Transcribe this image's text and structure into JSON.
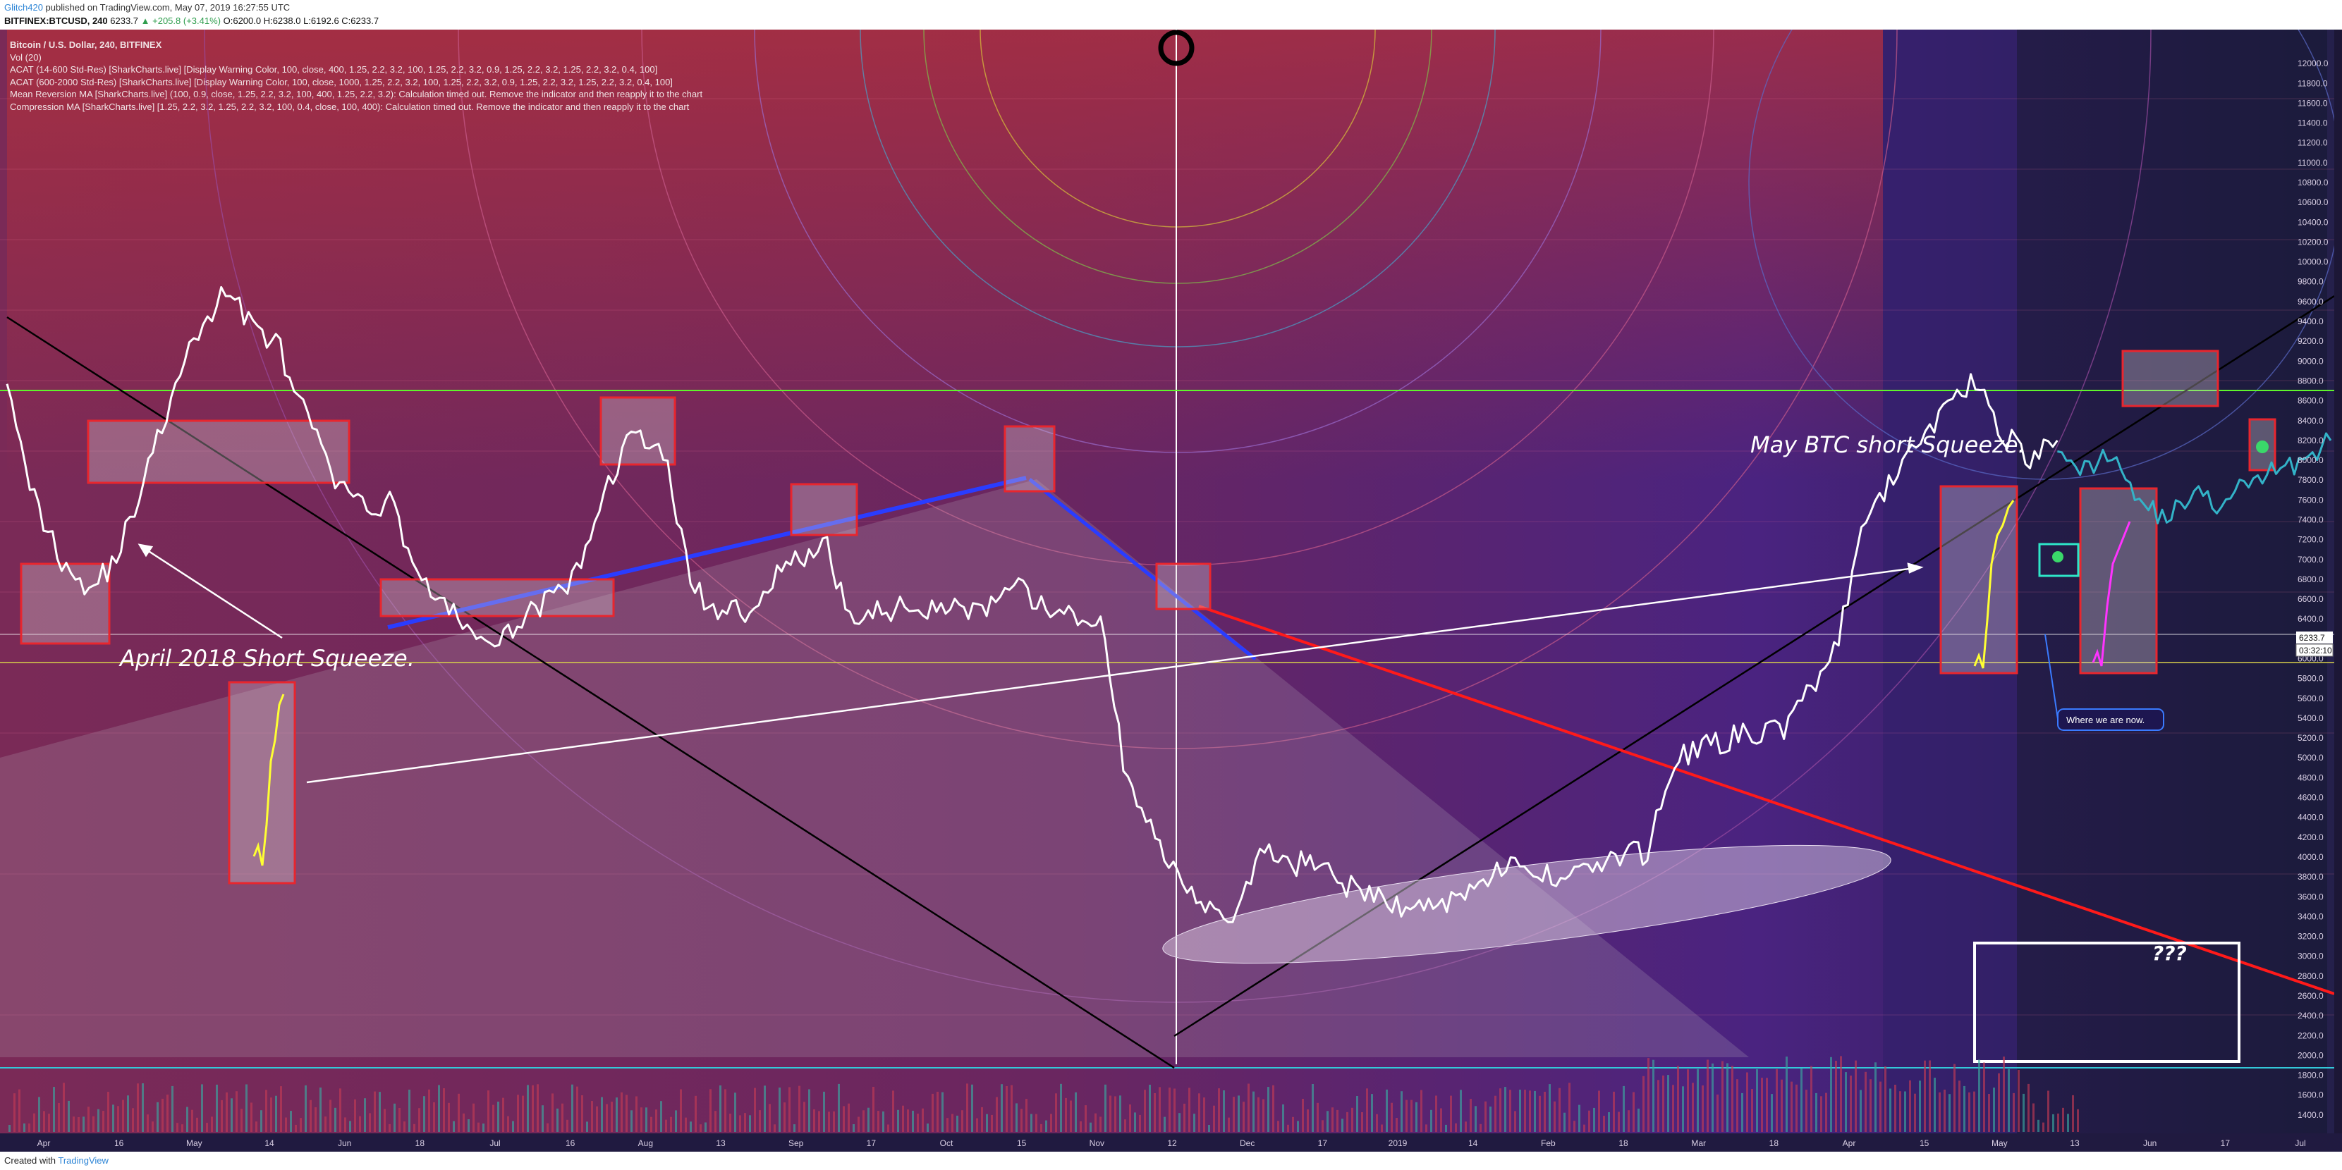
{
  "header": {
    "user": "Glitch420",
    "published": "published on TradingView.com, May 07, 2019 16:27:55 UTC",
    "symbol": "BITFINEX:BTCUSD, 240",
    "last": "6233.7",
    "change": "▲ +205.8 (+3.41%)",
    "ohlc": "O:6200.0 H:6238.0 L:6192.6 C:6233.7"
  },
  "legend": {
    "title": "Bitcoin / U.S. Dollar, 240, BITFINEX",
    "vol": "Vol (20)",
    "ind1": "ACAT (14-600 Std-Res) [SharkCharts.live] [Display Warning Color, 100, close, 400, 1.25, 2.2, 3.2, 100, 1.25, 2.2, 3.2, 0.9, 1.25, 2.2, 3.2, 1.25, 2.2, 3.2, 0.4, 100]",
    "ind2": "ACAT (600-2000 Std-Res) [SharkCharts.live] [Display Warning Color, 100, close, 1000, 1.25, 2.2, 3.2, 100, 1.25, 2.2, 3.2, 0.9, 1.25, 2.2, 3.2, 1.25, 2.2, 3.2, 0.4, 100]",
    "ind3": "Mean Reversion MA [SharkCharts.live] (100, 0.9, close, 1.25, 2.2, 3.2, 100, 400, 1.25, 2.2, 3.2): Calculation timed out. Remove the indicator and then reapply it to the chart",
    "ind4": "Compression MA [SharkCharts.live] [1.25, 2.2, 3.2, 1.25, 2.2, 3.2, 100, 0.4, close, 100, 400): Calculation timed out. Remove the indicator and then reapply it to the chart"
  },
  "annotations": {
    "april": "April 2018 Short Squeeze.",
    "may": "May BTC short Squeeze.",
    "now": "Where we are now.",
    "unknown": "???"
  },
  "footer": {
    "created": "Created with",
    "brand": "TradingView"
  },
  "price_label": "6233.7",
  "countdown_label": "03:32:10",
  "colors": {
    "price_line": "#ffffff",
    "squeeze": "#ffff33",
    "box_border": "#e8262e",
    "resistance": "#5ff52b",
    "trend_red": "#ff1a1a",
    "trend_blue": "#2a3cff",
    "projection": "#33b3c8"
  },
  "chart_data": {
    "type": "line",
    "title": "Bitcoin / U.S. Dollar, 240, BITFINEX",
    "x_ticks": [
      "Apr",
      "16",
      "May",
      "14",
      "Jun",
      "18",
      "Jul",
      "16",
      "Aug",
      "13",
      "Sep",
      "17",
      "Oct",
      "15",
      "Nov",
      "12",
      "Dec",
      "17",
      "2019",
      "14",
      "Feb",
      "18",
      "Mar",
      "18",
      "Apr",
      "15",
      "May",
      "13",
      "Jun",
      "17",
      "Jul"
    ],
    "y_ticks": [
      12000,
      11800,
      11600,
      11400,
      11200,
      11000,
      10800,
      10600,
      10400,
      10200,
      10000,
      9800,
      9600,
      9400,
      9200,
      9000,
      8800,
      8600,
      8400,
      8200,
      8000,
      7800,
      7600,
      7400,
      7200,
      7000,
      6800,
      6600,
      6400,
      6200,
      6000,
      5800,
      5600,
      5400,
      5200,
      5000,
      4800,
      4600,
      4400,
      4200,
      4000,
      3800,
      3600,
      3400,
      3200,
      3000,
      2800,
      2600,
      2400,
      2200,
      2000,
      1800,
      1600,
      1400
    ],
    "ylim": [
      1200,
      12200
    ],
    "xlim": [
      0,
      68
    ],
    "series": [
      {
        "x": [
          0,
          0.8,
          1.6,
          2.4,
          3.2,
          4.0,
          4.8,
          5.6,
          6.4,
          7.2,
          8.0,
          8.8,
          9.6,
          10.4,
          11.2,
          12.0,
          12.8,
          13.6,
          14.4,
          15.2,
          16.0,
          16.8,
          17.6,
          18.4,
          19.2,
          20.0,
          20.8,
          21.6,
          22.4,
          23.2,
          24.0,
          24.8,
          25.6,
          26.4,
          27.2,
          28.0,
          28.8,
          29.6,
          30.4,
          31.2,
          32.0,
          32.8,
          33.6,
          34.4,
          35.2,
          36.0,
          36.8,
          37.6,
          38.4,
          39.2,
          40.0,
          40.8,
          41.6,
          42.4,
          43.2,
          44.0,
          44.8,
          45.6,
          46.4,
          47.2,
          48.0,
          48.8,
          49.6,
          50.4,
          51.2,
          52.0,
          52.8,
          53.6,
          54.4,
          55.2,
          56.0,
          56.8,
          57.6,
          58.4,
          59.2,
          60.0
        ],
        "values": [
          8900,
          7600,
          7000,
          6700,
          7000,
          7800,
          8600,
          9300,
          9700,
          9400,
          9100,
          8400,
          7800,
          7500,
          7600,
          6900,
          6500,
          6300,
          6100,
          6500,
          6600,
          6900,
          7800,
          8300,
          8100,
          6800,
          6400,
          6500,
          6800,
          7000,
          7100,
          6300,
          6500,
          6500,
          6550,
          6500,
          6500,
          6700,
          6500,
          6400,
          6400,
          4700,
          4200,
          3800,
          3500,
          3400,
          4100,
          3900,
          4000,
          3700,
          3600,
          3500,
          3500,
          3600,
          3800,
          3900,
          3800,
          3850,
          3900,
          4000,
          4050,
          5000,
          5100,
          5200,
          5250,
          5300,
          5700,
          6200,
          7400,
          7800,
          8200,
          8600,
          8800,
          8300,
          8000,
          8200
        ]
      },
      {
        "name": "",
        "x": [
          60.0,
          60.8,
          61.6,
          62.4,
          63.2,
          64.0,
          64.8,
          65.6,
          66.4,
          67.2,
          68.0
        ],
        "values": [
          8200,
          7900,
          8100,
          7600,
          7400,
          7700,
          7500,
          7800,
          7900,
          8000,
          8200
        ]
      }
    ],
    "grid": false,
    "legend": "top-left"
  }
}
